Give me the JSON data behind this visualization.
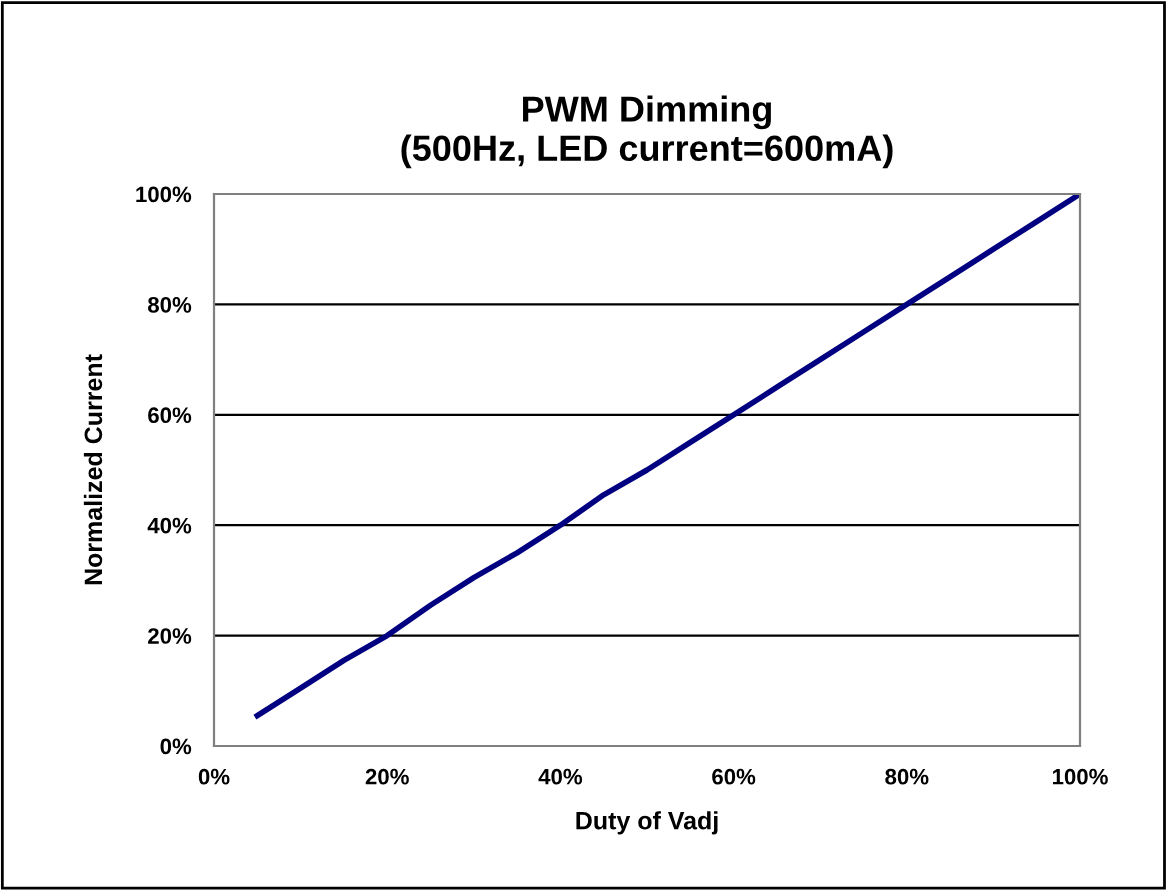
{
  "chart_data": {
    "type": "line",
    "title": "PWM Dimming\n(500Hz, LED current=600mA)",
    "xlabel": "Duty of Vadj",
    "ylabel": "Normalized Current",
    "x": [
      5,
      10,
      15,
      20,
      25,
      30,
      35,
      40,
      45,
      50,
      55,
      60,
      65,
      70,
      75,
      80,
      85,
      90,
      95,
      100
    ],
    "series": [
      {
        "color": "#000080",
        "values": [
          5.5,
          10.5,
          15.5,
          20,
          25.5,
          30.5,
          35,
          40,
          45.5,
          50,
          55,
          60,
          65,
          70,
          75,
          80,
          85,
          90,
          95,
          100
        ]
      }
    ],
    "xlim": [
      0,
      100
    ],
    "ylim": [
      0,
      100
    ],
    "xticks": [
      {
        "value": 0,
        "label": "0%"
      },
      {
        "value": 20,
        "label": "20%"
      },
      {
        "value": 40,
        "label": "40%"
      },
      {
        "value": 60,
        "label": "60%"
      },
      {
        "value": 80,
        "label": "80%"
      },
      {
        "value": 100,
        "label": "100%"
      }
    ],
    "yticks": [
      {
        "value": 0,
        "label": "0%"
      },
      {
        "value": 20,
        "label": "20%"
      },
      {
        "value": 40,
        "label": "40%"
      },
      {
        "value": 60,
        "label": "60%"
      },
      {
        "value": 80,
        "label": "80%"
      },
      {
        "value": 100,
        "label": "100%"
      }
    ],
    "grid": "y",
    "marker": "none",
    "line_style": "solid",
    "legend": false
  }
}
